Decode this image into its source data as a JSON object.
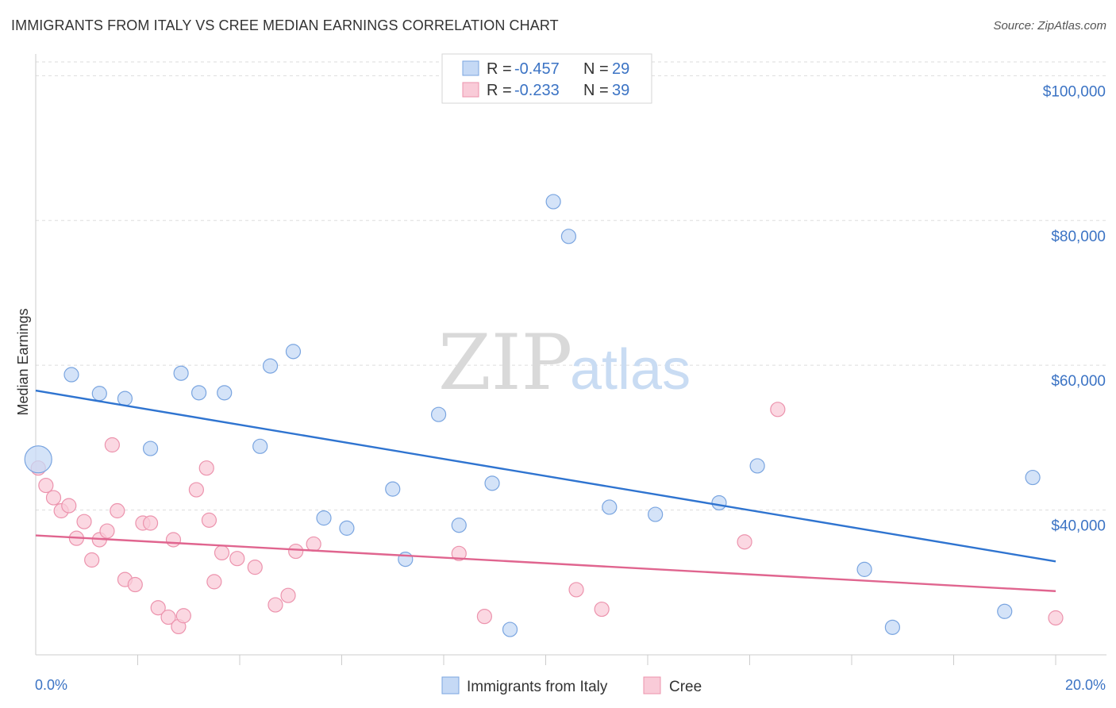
{
  "title": "IMMIGRANTS FROM ITALY VS CREE MEDIAN EARNINGS CORRELATION CHART",
  "source": "Source: ZipAtlas.com",
  "watermark": {
    "zip": "ZIP",
    "atlas": "atlas"
  },
  "colors": {
    "italy_fill": "#c5d9f5",
    "italy_stroke": "#7aa5e0",
    "italy_line": "#2f74d0",
    "cree_fill": "#f9cbd8",
    "cree_stroke": "#ec93ad",
    "cree_line": "#e0658f",
    "tick_label": "#3b73c4",
    "grid": "#dddddd"
  },
  "legend": {
    "rows": [
      {
        "r_label": "R =",
        "r_value": "-0.457",
        "n_label": "N =",
        "n_value": "29"
      },
      {
        "r_label": "R =",
        "r_value": "-0.233",
        "n_label": "N =",
        "n_value": "39"
      }
    ]
  },
  "chart_data": {
    "type": "scatter",
    "xlabel": "",
    "ylabel": "Median Earnings",
    "xlim": [
      0,
      20
    ],
    "ylim": [
      20000,
      103000
    ],
    "x_ticks": [
      "0.0%",
      "20.0%"
    ],
    "y_ticks": [
      {
        "value": 40000,
        "label": "$40,000"
      },
      {
        "value": 60000,
        "label": "$60,000"
      },
      {
        "value": 80000,
        "label": "$80,000"
      },
      {
        "value": 100000,
        "label": "$100,000"
      }
    ],
    "grid": true,
    "legend_position": "top-center",
    "series": [
      {
        "name": "Immigrants from Italy",
        "trend": {
          "x": [
            0,
            20
          ],
          "y": [
            56500,
            32900
          ]
        },
        "points": [
          {
            "x": 0.05,
            "y": 47000,
            "big": true
          },
          {
            "x": 0.7,
            "y": 58700
          },
          {
            "x": 1.25,
            "y": 56100
          },
          {
            "x": 1.75,
            "y": 55400
          },
          {
            "x": 2.25,
            "y": 48500
          },
          {
            "x": 2.85,
            "y": 58900
          },
          {
            "x": 3.2,
            "y": 56200
          },
          {
            "x": 3.7,
            "y": 56200
          },
          {
            "x": 4.4,
            "y": 48800
          },
          {
            "x": 4.6,
            "y": 59900
          },
          {
            "x": 5.05,
            "y": 61900
          },
          {
            "x": 5.65,
            "y": 38900
          },
          {
            "x": 6.1,
            "y": 37500
          },
          {
            "x": 7.0,
            "y": 42900
          },
          {
            "x": 7.25,
            "y": 33200
          },
          {
            "x": 7.9,
            "y": 53200
          },
          {
            "x": 8.3,
            "y": 37900
          },
          {
            "x": 8.95,
            "y": 43700
          },
          {
            "x": 9.3,
            "y": 23500
          },
          {
            "x": 10.15,
            "y": 82600
          },
          {
            "x": 10.45,
            "y": 77800
          },
          {
            "x": 11.25,
            "y": 40400
          },
          {
            "x": 12.15,
            "y": 39400
          },
          {
            "x": 13.4,
            "y": 41000
          },
          {
            "x": 14.15,
            "y": 46100
          },
          {
            "x": 16.25,
            "y": 31800
          },
          {
            "x": 16.8,
            "y": 23800
          },
          {
            "x": 19.0,
            "y": 26000
          },
          {
            "x": 19.55,
            "y": 44500
          }
        ]
      },
      {
        "name": "Cree",
        "trend": {
          "x": [
            0,
            20
          ],
          "y": [
            36500,
            28800
          ]
        },
        "points": [
          {
            "x": 0.05,
            "y": 45800
          },
          {
            "x": 0.2,
            "y": 43400
          },
          {
            "x": 0.35,
            "y": 41700
          },
          {
            "x": 0.5,
            "y": 39900
          },
          {
            "x": 0.65,
            "y": 40600
          },
          {
            "x": 0.8,
            "y": 36100
          },
          {
            "x": 0.95,
            "y": 38400
          },
          {
            "x": 1.1,
            "y": 33100
          },
          {
            "x": 1.25,
            "y": 35900
          },
          {
            "x": 1.4,
            "y": 37100
          },
          {
            "x": 1.5,
            "y": 49000
          },
          {
            "x": 1.6,
            "y": 39900
          },
          {
            "x": 1.75,
            "y": 30400
          },
          {
            "x": 1.95,
            "y": 29700
          },
          {
            "x": 2.1,
            "y": 38200
          },
          {
            "x": 2.25,
            "y": 38200
          },
          {
            "x": 2.4,
            "y": 26500
          },
          {
            "x": 2.6,
            "y": 25200
          },
          {
            "x": 2.7,
            "y": 35900
          },
          {
            "x": 2.8,
            "y": 23900
          },
          {
            "x": 2.9,
            "y": 25400
          },
          {
            "x": 3.15,
            "y": 42800
          },
          {
            "x": 3.35,
            "y": 45800
          },
          {
            "x": 3.4,
            "y": 38600
          },
          {
            "x": 3.5,
            "y": 30100
          },
          {
            "x": 3.65,
            "y": 34100
          },
          {
            "x": 3.95,
            "y": 33300
          },
          {
            "x": 4.3,
            "y": 32100
          },
          {
            "x": 4.7,
            "y": 26900
          },
          {
            "x": 4.95,
            "y": 28200
          },
          {
            "x": 5.1,
            "y": 34300
          },
          {
            "x": 5.45,
            "y": 35300
          },
          {
            "x": 8.3,
            "y": 34000
          },
          {
            "x": 8.8,
            "y": 25300
          },
          {
            "x": 10.6,
            "y": 29000
          },
          {
            "x": 11.1,
            "y": 26300
          },
          {
            "x": 13.9,
            "y": 35600
          },
          {
            "x": 14.55,
            "y": 53900
          },
          {
            "x": 20.0,
            "y": 25100
          }
        ]
      }
    ]
  }
}
